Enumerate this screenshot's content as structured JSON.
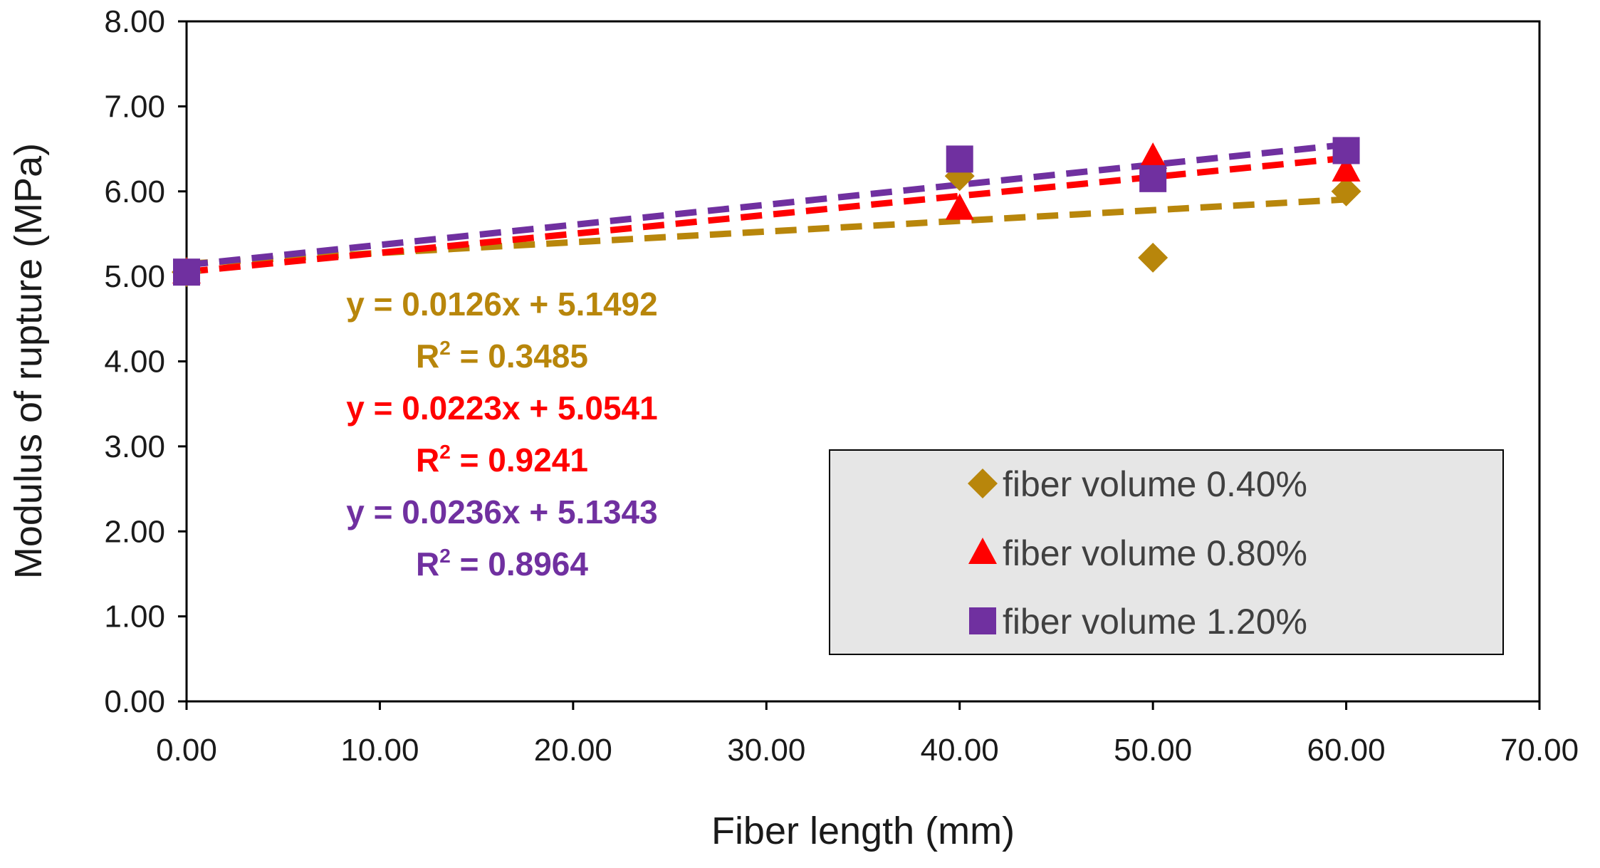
{
  "chart_data": {
    "type": "scatter",
    "title": "",
    "xlabel": "Fiber length (mm)",
    "ylabel": "Modulus of rupture (MPa)",
    "xlim": [
      0,
      70
    ],
    "ylim": [
      0,
      8
    ],
    "x_ticks": [
      "0.00",
      "10.00",
      "20.00",
      "30.00",
      "40.00",
      "50.00",
      "60.00",
      "70.00"
    ],
    "y_ticks": [
      "0.00",
      "1.00",
      "2.00",
      "3.00",
      "4.00",
      "5.00",
      "6.00",
      "7.00",
      "8.00"
    ],
    "grid": false,
    "legend_position": "bottom-right",
    "series": [
      {
        "name": "fiber volume 0.40%",
        "marker": "diamond",
        "color": "#B8860B",
        "x": [
          0,
          40,
          50,
          60
        ],
        "y": [
          5.05,
          6.18,
          5.22,
          6.0
        ],
        "trendline": {
          "slope": 0.0126,
          "intercept": 5.1492,
          "equation": "y = 0.0126x + 5.1492",
          "r2_label": "R",
          "r2_exp": "2",
          "r2_value": " = 0.3485"
        }
      },
      {
        "name": "fiber volume 0.80%",
        "marker": "triangle",
        "color": "#FF0000",
        "x": [
          0,
          40,
          50,
          60
        ],
        "y": [
          5.05,
          5.8,
          6.4,
          6.25
        ],
        "trendline": {
          "slope": 0.0223,
          "intercept": 5.0541,
          "equation": "y = 0.0223x + 5.0541",
          "r2_label": "R",
          "r2_exp": "2",
          "r2_value": " = 0.9241"
        }
      },
      {
        "name": "fiber volume 1.20%",
        "marker": "square",
        "color": "#7030A0",
        "x": [
          0,
          40,
          50,
          60
        ],
        "y": [
          5.05,
          6.38,
          6.15,
          6.48
        ],
        "trendline": {
          "slope": 0.0236,
          "intercept": 5.1343,
          "equation": "y = 0.0236x + 5.1343",
          "r2_label": "R",
          "r2_exp": "2",
          "r2_value": " = 0.8964"
        }
      }
    ]
  }
}
